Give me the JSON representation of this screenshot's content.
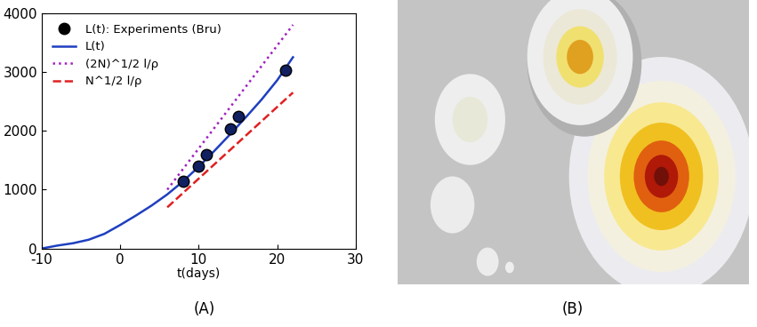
{
  "chart_data": {
    "type": "line",
    "caption": "(A)",
    "x_label": "t(days)",
    "xlim": [
      -10,
      30
    ],
    "xticks": [
      -10,
      0,
      10,
      20,
      30
    ],
    "ylim": [
      0,
      4000
    ],
    "yticks": [
      0,
      1000,
      2000,
      3000,
      4000
    ],
    "grid": false,
    "legend": "upper left",
    "series": [
      {
        "name": "L(t): Experiments (Bru)",
        "type": "scatter",
        "color": "#000000",
        "marker": "o",
        "x": [
          8,
          10,
          11,
          14,
          15,
          21
        ],
        "values": [
          1140,
          1400,
          1590,
          2040,
          2250,
          3030
        ]
      },
      {
        "name": "L(t)",
        "type": "line",
        "color": "#1f3fbf",
        "line_style": "solid",
        "x": [
          -10,
          -8,
          -6,
          -4,
          -2,
          0,
          2,
          4,
          6,
          8,
          10,
          12,
          14,
          16,
          18,
          20,
          22
        ],
        "values": [
          0,
          50,
          90,
          150,
          250,
          400,
          560,
          730,
          920,
          1140,
          1390,
          1660,
          1940,
          2230,
          2530,
          2860,
          3250
        ]
      },
      {
        "name": "(2N)^1/2 l/ρ",
        "type": "line",
        "color": "#a020c0",
        "line_style": "dotted",
        "x": [
          6,
          22
        ],
        "values": [
          1000,
          3800
        ]
      },
      {
        "name": "N^1/2 l/ρ",
        "type": "line",
        "color": "#e02020",
        "line_style": "dashed",
        "x": [
          6,
          22
        ],
        "values": [
          700,
          2650
        ]
      }
    ]
  },
  "image": {
    "caption": "(B)"
  }
}
